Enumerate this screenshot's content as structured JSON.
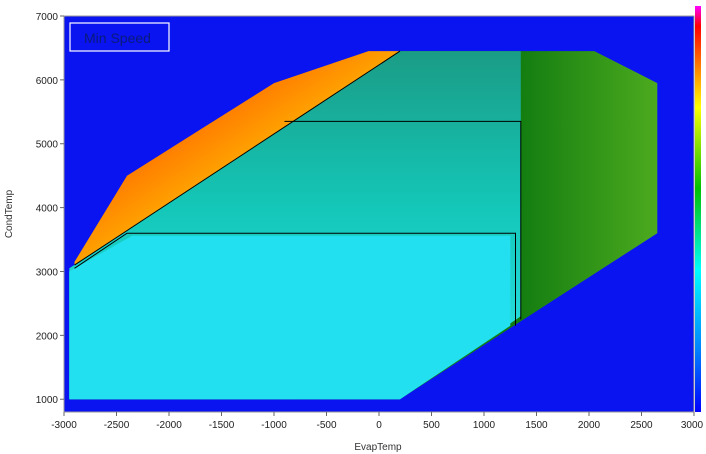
{
  "chart_data": {
    "type": "heatmap",
    "title": "Min Speed",
    "xlabel": "EvapTemp",
    "ylabel": "CondTemp",
    "xlim": [
      -3000,
      3000
    ],
    "ylim": [
      800,
      7000
    ],
    "x_ticks": [
      -3000,
      -2500,
      -2000,
      -1500,
      -1000,
      -500,
      0,
      500,
      1000,
      1500,
      2000,
      2500,
      3000
    ],
    "y_ticks": [
      1000,
      2000,
      3000,
      4000,
      5000,
      6000,
      7000
    ],
    "background_color": "#0a14f0",
    "colorbar": "right",
    "grid": false,
    "regions": [
      {
        "color_top": "#ff2a00",
        "color_bottom": "#f4f400",
        "outline": [
          [
            -2900,
            3150
          ],
          [
            -2400,
            4500
          ],
          [
            -1000,
            5950
          ],
          [
            -100,
            6450
          ],
          [
            200,
            6450
          ],
          [
            -2900,
            3100
          ]
        ]
      },
      {
        "color_top": "#2f8f1f",
        "color_bottom": "#49a81f",
        "outline": [
          [
            200,
            6450
          ],
          [
            2050,
            6450
          ],
          [
            2650,
            5950
          ],
          [
            2650,
            3600
          ],
          [
            200,
            1000
          ],
          [
            -2950,
            1000
          ],
          [
            -2950,
            3000
          ]
        ]
      },
      {
        "color_top": "#0fa89e",
        "color_bottom": "#19e6f0",
        "outline": [
          [
            -2950,
            3050
          ],
          [
            200,
            6450
          ],
          [
            1350,
            6450
          ],
          [
            1350,
            2300
          ],
          [
            200,
            1000
          ],
          [
            -2950,
            1000
          ]
        ]
      },
      {
        "color_top": "#22e0f0",
        "color_bottom": "#22e0f0",
        "outline": [
          [
            -2950,
            3000
          ],
          [
            -2350,
            3560
          ],
          [
            1250,
            3560
          ],
          [
            1250,
            2150
          ],
          [
            200,
            1000
          ],
          [
            -2950,
            1000
          ]
        ]
      }
    ],
    "envelopes": [
      [
        [
          -2900,
          3050
        ],
        [
          -2400,
          3600
        ],
        [
          1300,
          3600
        ],
        [
          1300,
          2150
        ]
      ],
      [
        [
          -900,
          5350
        ],
        [
          1350,
          5350
        ],
        [
          1350,
          2250
        ]
      ],
      [
        [
          -2900,
          3100
        ],
        [
          200,
          6450
        ]
      ]
    ]
  }
}
